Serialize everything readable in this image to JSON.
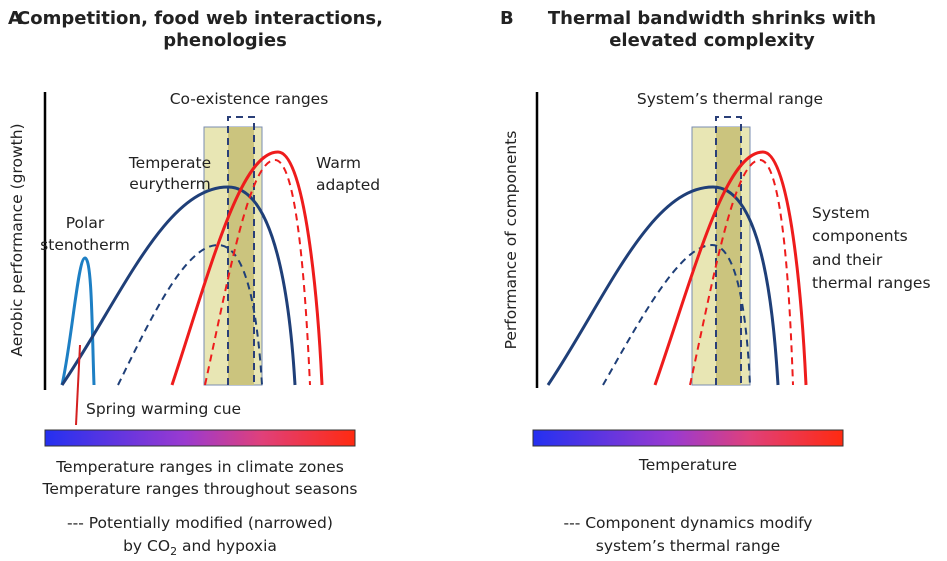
{
  "panel_a": {
    "letter": "A",
    "title_lines": [
      "Competition, food web interactions,",
      "phenologies"
    ],
    "y_label": "Aerobic performance (growth)",
    "range_label": "Co-existence ranges",
    "temperate_lines": [
      "Temperate",
      "eurytherm"
    ],
    "warm_lines": [
      "Warm",
      "adapted"
    ],
    "polar_lines": [
      "Polar",
      "stenotherm"
    ],
    "cue_label": "Spring warming cue",
    "bar_lines": [
      "Temperature ranges in climate zones",
      "Temperature ranges throughout seasons"
    ],
    "note_line1": "--- Potentially modified (narrowed)",
    "note_line2": [
      "by CO",
      "2",
      " and hypoxia"
    ]
  },
  "panel_b": {
    "letter": "B",
    "title_lines": [
      "Thermal bandwidth shrinks with",
      "elevated complexity"
    ],
    "y_label": "Performance of components",
    "range_label": "System’s thermal range",
    "components_lines": [
      "System",
      "components",
      "and their",
      "thermal ranges"
    ],
    "bar_label": "Temperature",
    "note_lines": [
      "--- Component dynamics modify",
      "system’s thermal range"
    ]
  }
}
